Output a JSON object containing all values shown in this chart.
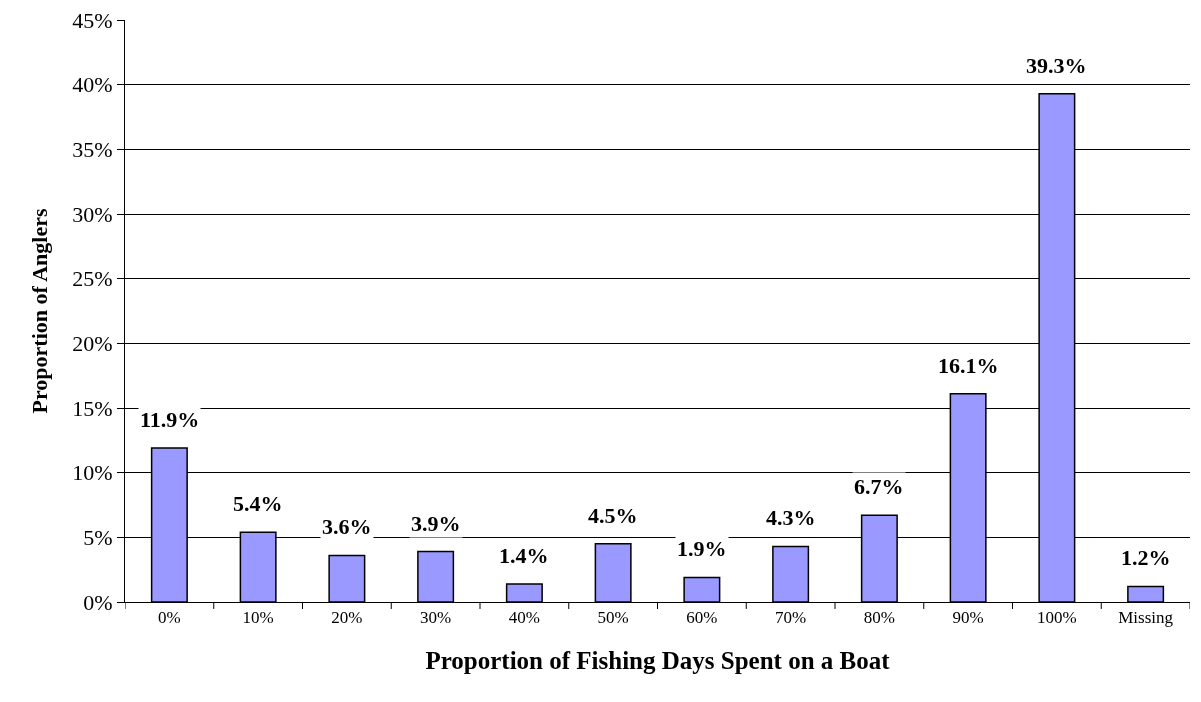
{
  "chart_data": {
    "type": "bar",
    "xlabel": "Proportion of Fishing Days Spent on a Boat",
    "ylabel": "Proportion of Anglers",
    "categories": [
      "0%",
      "10%",
      "20%",
      "30%",
      "40%",
      "50%",
      "60%",
      "70%",
      "80%",
      "90%",
      "100%",
      "Missing"
    ],
    "values": [
      11.9,
      5.4,
      3.6,
      3.9,
      1.4,
      4.5,
      1.9,
      4.3,
      6.7,
      16.1,
      39.3,
      1.2
    ],
    "value_labels": [
      "11.9%",
      "5.4%",
      "3.6%",
      "3.9%",
      "1.4%",
      "4.5%",
      "1.9%",
      "4.3%",
      "6.7%",
      "16.1%",
      "39.3%",
      "1.2%"
    ],
    "color": "#9999ff",
    "ylim": [
      0,
      45
    ],
    "yticks": [
      {
        "value": 0,
        "label": "0%"
      },
      {
        "value": 5,
        "label": "5%"
      },
      {
        "value": 10,
        "label": "10%"
      },
      {
        "value": 15,
        "label": "15%"
      },
      {
        "value": 20,
        "label": "20%"
      },
      {
        "value": 25,
        "label": "25%"
      },
      {
        "value": 30,
        "label": "30%"
      },
      {
        "value": 35,
        "label": "35%"
      },
      {
        "value": 40,
        "label": "40%"
      },
      {
        "value": 45,
        "label": "45%"
      }
    ],
    "grid": "y",
    "legend": false
  }
}
